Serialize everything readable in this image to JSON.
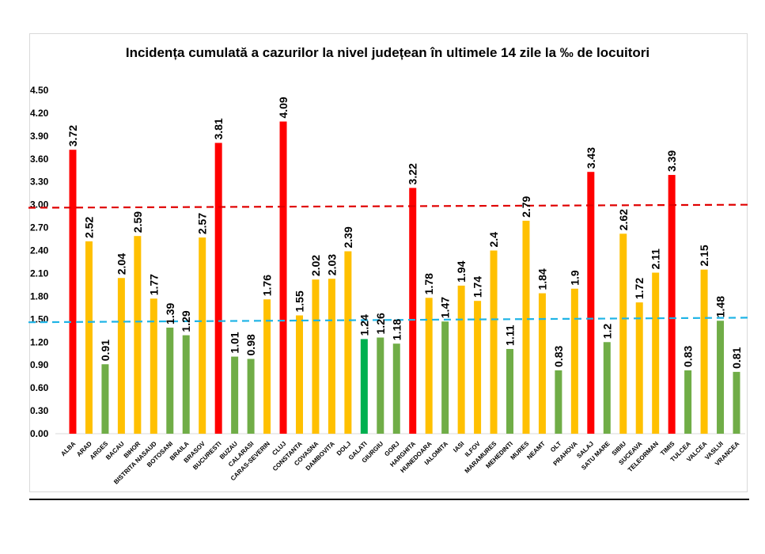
{
  "chart_data": {
    "type": "bar",
    "title": "Incidența cumulată a cazurilor la nivel județean în ultimele 14 zile la ‰ de locuitori",
    "xlabel": "",
    "ylabel": "",
    "ylim": [
      0,
      4.5
    ],
    "yticks": [
      "0.00",
      "0.30",
      "0.60",
      "0.90",
      "1.20",
      "1.50",
      "1.80",
      "2.10",
      "2.40",
      "2.70",
      "3.00",
      "3.30",
      "3.60",
      "3.90",
      "4.20",
      "4.50"
    ],
    "categories": [
      "ALBA",
      "ARAD",
      "ARGES",
      "BACAU",
      "BIHOR",
      "BISTRITA NASAUD",
      "BOTOSANI",
      "BRAILA",
      "BRASOV",
      "BUCURESTI",
      "BUZAU",
      "CALARASI",
      "CARAS-SEVERIN",
      "CLUJ",
      "CONSTANTA",
      "COVASNA",
      "DAMBOVITA",
      "DOLJ",
      "GALATI",
      "GIURGIU",
      "GORJ",
      "HARGHITA",
      "HUNEDOARA",
      "IALOMITA",
      "IASI",
      "ILFOV",
      "MARAMURES",
      "MEHEDINTI",
      "MURES",
      "NEAMT",
      "OLT",
      "PRAHOVA",
      "SALAJ",
      "SATU MARE",
      "SIBIU",
      "SUCEAVA",
      "TELEORMAN",
      "TIMIS",
      "TULCEA",
      "VALCEA",
      "VASLUI",
      "VRANCEA"
    ],
    "values": [
      3.72,
      2.52,
      0.91,
      2.04,
      2.59,
      1.77,
      1.39,
      1.29,
      2.57,
      3.81,
      1.01,
      0.98,
      1.76,
      4.09,
      1.55,
      2.02,
      2.03,
      2.39,
      1.24,
      1.26,
      1.18,
      3.22,
      1.78,
      1.47,
      1.94,
      1.74,
      2.4,
      1.11,
      2.79,
      1.84,
      0.83,
      1.9,
      3.43,
      1.2,
      2.62,
      1.72,
      2.11,
      3.39,
      0.83,
      2.15,
      1.48,
      0.81
    ],
    "value_labels": [
      "3.72",
      "2.52",
      "0.91",
      "2.04",
      "2.59",
      "1.77",
      "1.39",
      "1.29",
      "2.57",
      "3.81",
      "1.01",
      "0.98",
      "1.76",
      "4.09",
      "1.55",
      "2.02",
      "2.03",
      "2.39",
      "1.24",
      "1.26",
      "1.18",
      "3.22",
      "1.78",
      "1.47",
      "1.94",
      "1.74",
      "2.4",
      "1.11",
      "2.79",
      "1.84",
      "0.83",
      "1.9",
      "3.43",
      "1.2",
      "2.62",
      "1.72",
      "2.11",
      "3.39",
      "0.83",
      "2.15",
      "1.48",
      "0.81"
    ],
    "bar_colors": [
      "#ff0000",
      "#ffc000",
      "#70ad47",
      "#ffc000",
      "#ffc000",
      "#ffc000",
      "#70ad47",
      "#70ad47",
      "#ffc000",
      "#ff0000",
      "#70ad47",
      "#70ad47",
      "#ffc000",
      "#ff0000",
      "#ffc000",
      "#ffc000",
      "#ffc000",
      "#ffc000",
      "#00b050",
      "#70ad47",
      "#70ad47",
      "#ff0000",
      "#ffc000",
      "#70ad47",
      "#ffc000",
      "#ffc000",
      "#ffc000",
      "#70ad47",
      "#ffc000",
      "#ffc000",
      "#70ad47",
      "#ffc000",
      "#ff0000",
      "#70ad47",
      "#ffc000",
      "#ffc000",
      "#ffc000",
      "#ff0000",
      "#70ad47",
      "#ffc000",
      "#70ad47",
      "#70ad47"
    ],
    "reference_lines": [
      {
        "value_start": 2.96,
        "value_end": 3.0,
        "color": "#e00000",
        "style": "dashed"
      },
      {
        "value_start": 1.46,
        "value_end": 1.52,
        "color": "#1fb4e6",
        "style": "dashed"
      }
    ],
    "grid": false,
    "legend": "none"
  }
}
